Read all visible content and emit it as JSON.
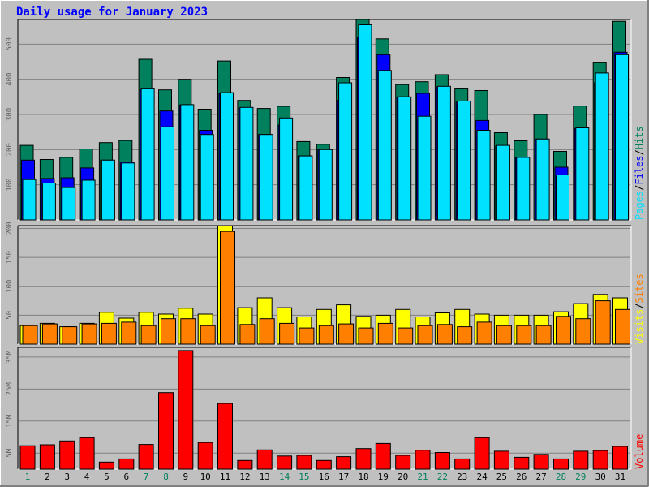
{
  "title": "Daily usage for January 2023",
  "colors": {
    "hits": "#00805c",
    "files": "#0000ff",
    "pages": "#00e0ff",
    "visits": "#ffff00",
    "sites": "#ff8000",
    "volume": "#ff0000",
    "title": "#0000ff",
    "weekend_day": "#00805c",
    "weekday_day": "#000000",
    "background": "#c0c0c0"
  },
  "chart_data": [
    {
      "type": "bar",
      "panel": "hits-files-pages",
      "axis_label_parts": [
        "Pages",
        "/",
        "Files",
        "/",
        "Hits"
      ],
      "ylim": [
        0,
        570
      ],
      "yticks": [
        100,
        200,
        300,
        400,
        500
      ],
      "grid": true,
      "categories": [
        "1",
        "2",
        "3",
        "4",
        "5",
        "6",
        "7",
        "8",
        "9",
        "10",
        "11",
        "12",
        "13",
        "14",
        "15",
        "16",
        "17",
        "18",
        "19",
        "20",
        "21",
        "22",
        "23",
        "24",
        "25",
        "26",
        "27",
        "28",
        "29",
        "30",
        "31"
      ],
      "series": [
        {
          "name": "Hits",
          "values": [
            212,
            172,
            178,
            202,
            220,
            226,
            457,
            370,
            400,
            315,
            452,
            340,
            317,
            323,
            223,
            215,
            405,
            570,
            515,
            385,
            393,
            413,
            373,
            368,
            248,
            225,
            300,
            195,
            324,
            447,
            565
          ]
        },
        {
          "name": "Files",
          "values": [
            170,
            118,
            120,
            148,
            170,
            165,
            370,
            310,
            327,
            255,
            360,
            318,
            243,
            270,
            182,
            200,
            340,
            520,
            470,
            350,
            360,
            378,
            335,
            283,
            210,
            178,
            230,
            150,
            260,
            390,
            477
          ]
        },
        {
          "name": "Pages",
          "values": [
            115,
            105,
            92,
            113,
            170,
            162,
            373,
            265,
            328,
            243,
            362,
            320,
            243,
            290,
            182,
            200,
            390,
            555,
            425,
            350,
            295,
            380,
            338,
            255,
            212,
            178,
            230,
            128,
            262,
            418,
            470
          ]
        }
      ]
    },
    {
      "type": "bar",
      "panel": "visits-sites",
      "axis_label_parts": [
        "Visits",
        "/",
        "Sites"
      ],
      "ylim": [
        0,
        205
      ],
      "yticks": [
        50,
        100,
        150,
        200
      ],
      "grid": true,
      "categories": [
        "1",
        "2",
        "3",
        "4",
        "5",
        "6",
        "7",
        "8",
        "9",
        "10",
        "11",
        "12",
        "13",
        "14",
        "15",
        "16",
        "17",
        "18",
        "19",
        "20",
        "21",
        "22",
        "23",
        "24",
        "25",
        "26",
        "27",
        "28",
        "29",
        "30",
        "31"
      ],
      "series": [
        {
          "name": "Visits",
          "values": [
            32,
            36,
            30,
            36,
            55,
            45,
            55,
            52,
            62,
            52,
            205,
            63,
            80,
            63,
            47,
            60,
            68,
            48,
            50,
            60,
            47,
            54,
            60,
            52,
            50,
            50,
            50,
            56,
            70,
            86,
            80
          ]
        },
        {
          "name": "Sites",
          "values": [
            32,
            35,
            30,
            35,
            36,
            38,
            32,
            44,
            44,
            32,
            195,
            34,
            44,
            36,
            28,
            32,
            35,
            28,
            36,
            28,
            32,
            34,
            30,
            38,
            32,
            32,
            32,
            48,
            44,
            75,
            60
          ]
        }
      ]
    },
    {
      "type": "bar",
      "panel": "volume",
      "axis_label_parts": [
        "Volume"
      ],
      "ylim": [
        0,
        38
      ],
      "yticks": [
        5,
        15,
        25,
        35
      ],
      "ytick_labels": [
        "5M",
        "15M",
        "25M",
        "35M"
      ],
      "grid": true,
      "categories": [
        "1",
        "2",
        "3",
        "4",
        "5",
        "6",
        "7",
        "8",
        "9",
        "10",
        "11",
        "12",
        "13",
        "14",
        "15",
        "16",
        "17",
        "18",
        "19",
        "20",
        "21",
        "22",
        "23",
        "24",
        "25",
        "26",
        "27",
        "28",
        "29",
        "30",
        "31"
      ],
      "weekend_days": [
        "1",
        "7",
        "8",
        "14",
        "15",
        "21",
        "22",
        "28",
        "29"
      ],
      "series": [
        {
          "name": "Volume",
          "values": [
            7.3,
            7.6,
            8.8,
            9.8,
            2.2,
            3.2,
            7.7,
            23.9,
            37.0,
            8.3,
            20.5,
            2.7,
            6.0,
            4.1,
            4.3,
            2.7,
            3.9,
            6.4,
            8.0,
            4.3,
            5.9,
            5.2,
            3.2,
            9.8,
            5.6,
            3.7,
            4.6,
            3.2,
            5.6,
            5.8,
            7.1
          ]
        }
      ]
    }
  ]
}
